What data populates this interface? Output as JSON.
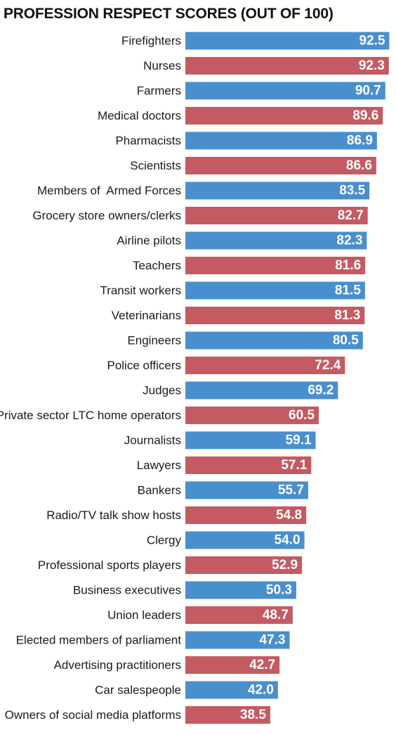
{
  "chart_data": {
    "type": "bar",
    "orientation": "horizontal",
    "title": "PROFESSION RESPECT SCORES (OUT OF 100)",
    "xlim": [
      0,
      100
    ],
    "grid": false,
    "categories": [
      "Firefighters",
      "Nurses",
      "Farmers",
      "Medical doctors",
      "Pharmacists",
      "Scientists",
      "Members of  Armed Forces",
      "Grocery store owners/clerks",
      "Airline pilots",
      "Teachers",
      "Transit workers",
      "Veterinarians",
      "Engineers",
      "Police officers",
      "Judges",
      "Private sector LTC home operators",
      "Journalists",
      "Lawyers",
      "Bankers",
      "Radio/TV talk show hosts",
      "Clergy",
      "Professional sports players",
      "Business executives",
      "Union leaders",
      "Elected members of parliament",
      "Advertising practitioners",
      "Car salespeople",
      "Owners of social media platforms"
    ],
    "values": [
      92.5,
      92.3,
      90.7,
      89.6,
      86.9,
      86.6,
      83.5,
      82.7,
      82.3,
      81.6,
      81.5,
      81.3,
      80.5,
      72.4,
      69.2,
      60.5,
      59.1,
      57.1,
      55.7,
      54.8,
      54.0,
      52.9,
      50.3,
      48.7,
      47.3,
      42.7,
      42.0,
      38.5
    ],
    "value_labels": [
      "92.5",
      "92.3",
      "90.7",
      "89.6",
      "86.9",
      "86.6",
      "83.5",
      "82.7",
      "82.3",
      "81.6",
      "81.5",
      "81.3",
      "80.5",
      "72.4",
      "69.2",
      "60.5",
      "59.1",
      "57.1",
      "55.7",
      "54.8",
      "54.0",
      "52.9",
      "50.3",
      "48.7",
      "47.3",
      "42.7",
      "42.0",
      "38.5"
    ],
    "colors": [
      "#4a8fcd",
      "#c45a62"
    ]
  }
}
